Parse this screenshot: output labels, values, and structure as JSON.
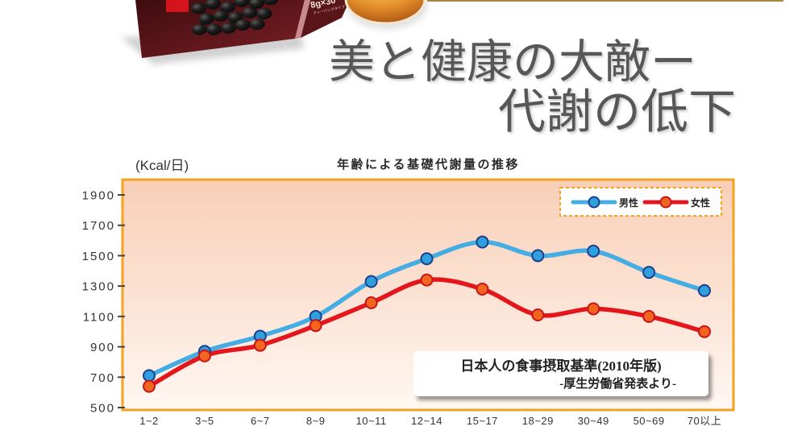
{
  "promo": {
    "package_text": "8g×30",
    "package_subtext": "ティーバッグタイプ"
  },
  "headline": {
    "line1": "美と健康の大敵ー",
    "line2": "代謝の低下"
  },
  "chart_data": {
    "type": "line",
    "title": "年齢による基礎代謝量の推移",
    "ylabel": "(Kcal/日)",
    "xlabel": "",
    "categories": [
      "1~2",
      "3~5",
      "6~7",
      "8~9",
      "10~11",
      "12~14",
      "15~17",
      "18~29",
      "30~49",
      "50~69",
      "70以上"
    ],
    "yticks": [
      500,
      700,
      900,
      1100,
      1300,
      1500,
      1700,
      1900
    ],
    "ylim": [
      500,
      2000
    ],
    "grid": false,
    "legend_position": "top-right",
    "frame_color": "#f4a21f",
    "series": [
      {
        "name": "男性",
        "color": "#45ade3",
        "marker_color": "#2f9fe0",
        "marker_stroke": "#1b3f88",
        "values": [
          710,
          870,
          970,
          1100,
          1330,
          1480,
          1590,
          1500,
          1530,
          1390,
          1270
        ]
      },
      {
        "name": "女性",
        "color": "#e3161c",
        "marker_color": "#f2651f",
        "marker_stroke": "#c8141b",
        "values": [
          640,
          840,
          910,
          1040,
          1190,
          1340,
          1280,
          1110,
          1150,
          1100,
          1000
        ]
      }
    ],
    "annotation": {
      "line1": "日本人の食事摂取基準(2010年版)",
      "line2": "-厚生労働省発表より-"
    }
  }
}
